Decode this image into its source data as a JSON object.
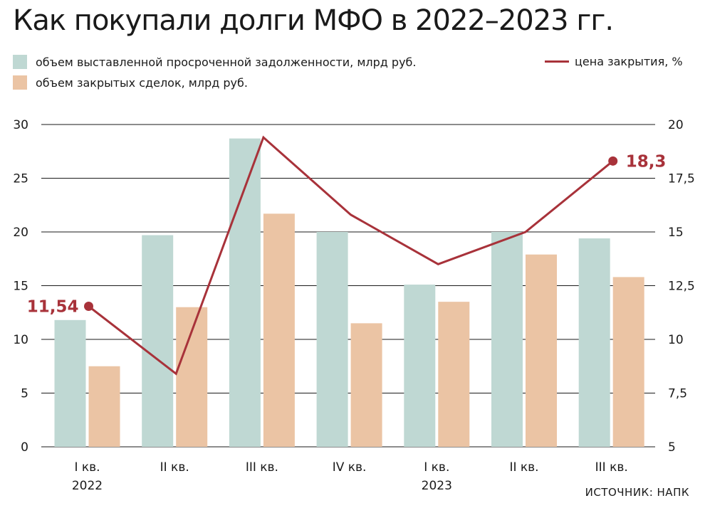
{
  "title": "Как покупали долги МФО в 2022–2023 гг.",
  "source": "ИСТОЧНИК: НАПК",
  "legend": {
    "series1": "объем выставленной просроченной задолженности, млрд руб.",
    "series2": "объем закрытых сделок, млрд руб.",
    "line": "цена закрытия, %"
  },
  "colors": {
    "series1": "#bfd8d3",
    "series2": "#ebc4a4",
    "line": "#a8323a",
    "grid": "#1a1a1a"
  },
  "chart_data": {
    "type": "bar",
    "categories": [
      "I кв.",
      "II кв.",
      "III кв.",
      "IV кв.",
      "I кв.",
      "II кв.",
      "III кв."
    ],
    "category_years": [
      "2022",
      "",
      "",
      "",
      "2023",
      "",
      ""
    ],
    "series": [
      {
        "name": "объем выставленной просроченной задолженности, млрд руб.",
        "axis": "left",
        "type": "bar",
        "values": [
          11.8,
          19.7,
          28.7,
          20.0,
          15.1,
          20.0,
          19.4
        ]
      },
      {
        "name": "объем закрытых сделок, млрд руб.",
        "axis": "left",
        "type": "bar",
        "values": [
          7.5,
          13.0,
          21.7,
          11.5,
          13.5,
          17.9,
          15.8
        ]
      },
      {
        "name": "цена закрытия, %",
        "axis": "right",
        "type": "line",
        "values": [
          11.54,
          8.4,
          19.4,
          15.8,
          13.5,
          15.0,
          18.3
        ]
      }
    ],
    "labeled_points": [
      {
        "index": 0,
        "label": "11,54"
      },
      {
        "index": 6,
        "label": "18,3"
      }
    ],
    "y_left": {
      "ylim": [
        0,
        30
      ],
      "ticks": [
        "0",
        "5",
        "10",
        "15",
        "20",
        "25",
        "30"
      ]
    },
    "y_right": {
      "ylim": [
        5,
        20
      ],
      "ticks": [
        "5",
        "7,5",
        "10",
        "12,5",
        "15",
        "17,5",
        "20"
      ]
    },
    "grid": true,
    "legend_position": "top"
  }
}
